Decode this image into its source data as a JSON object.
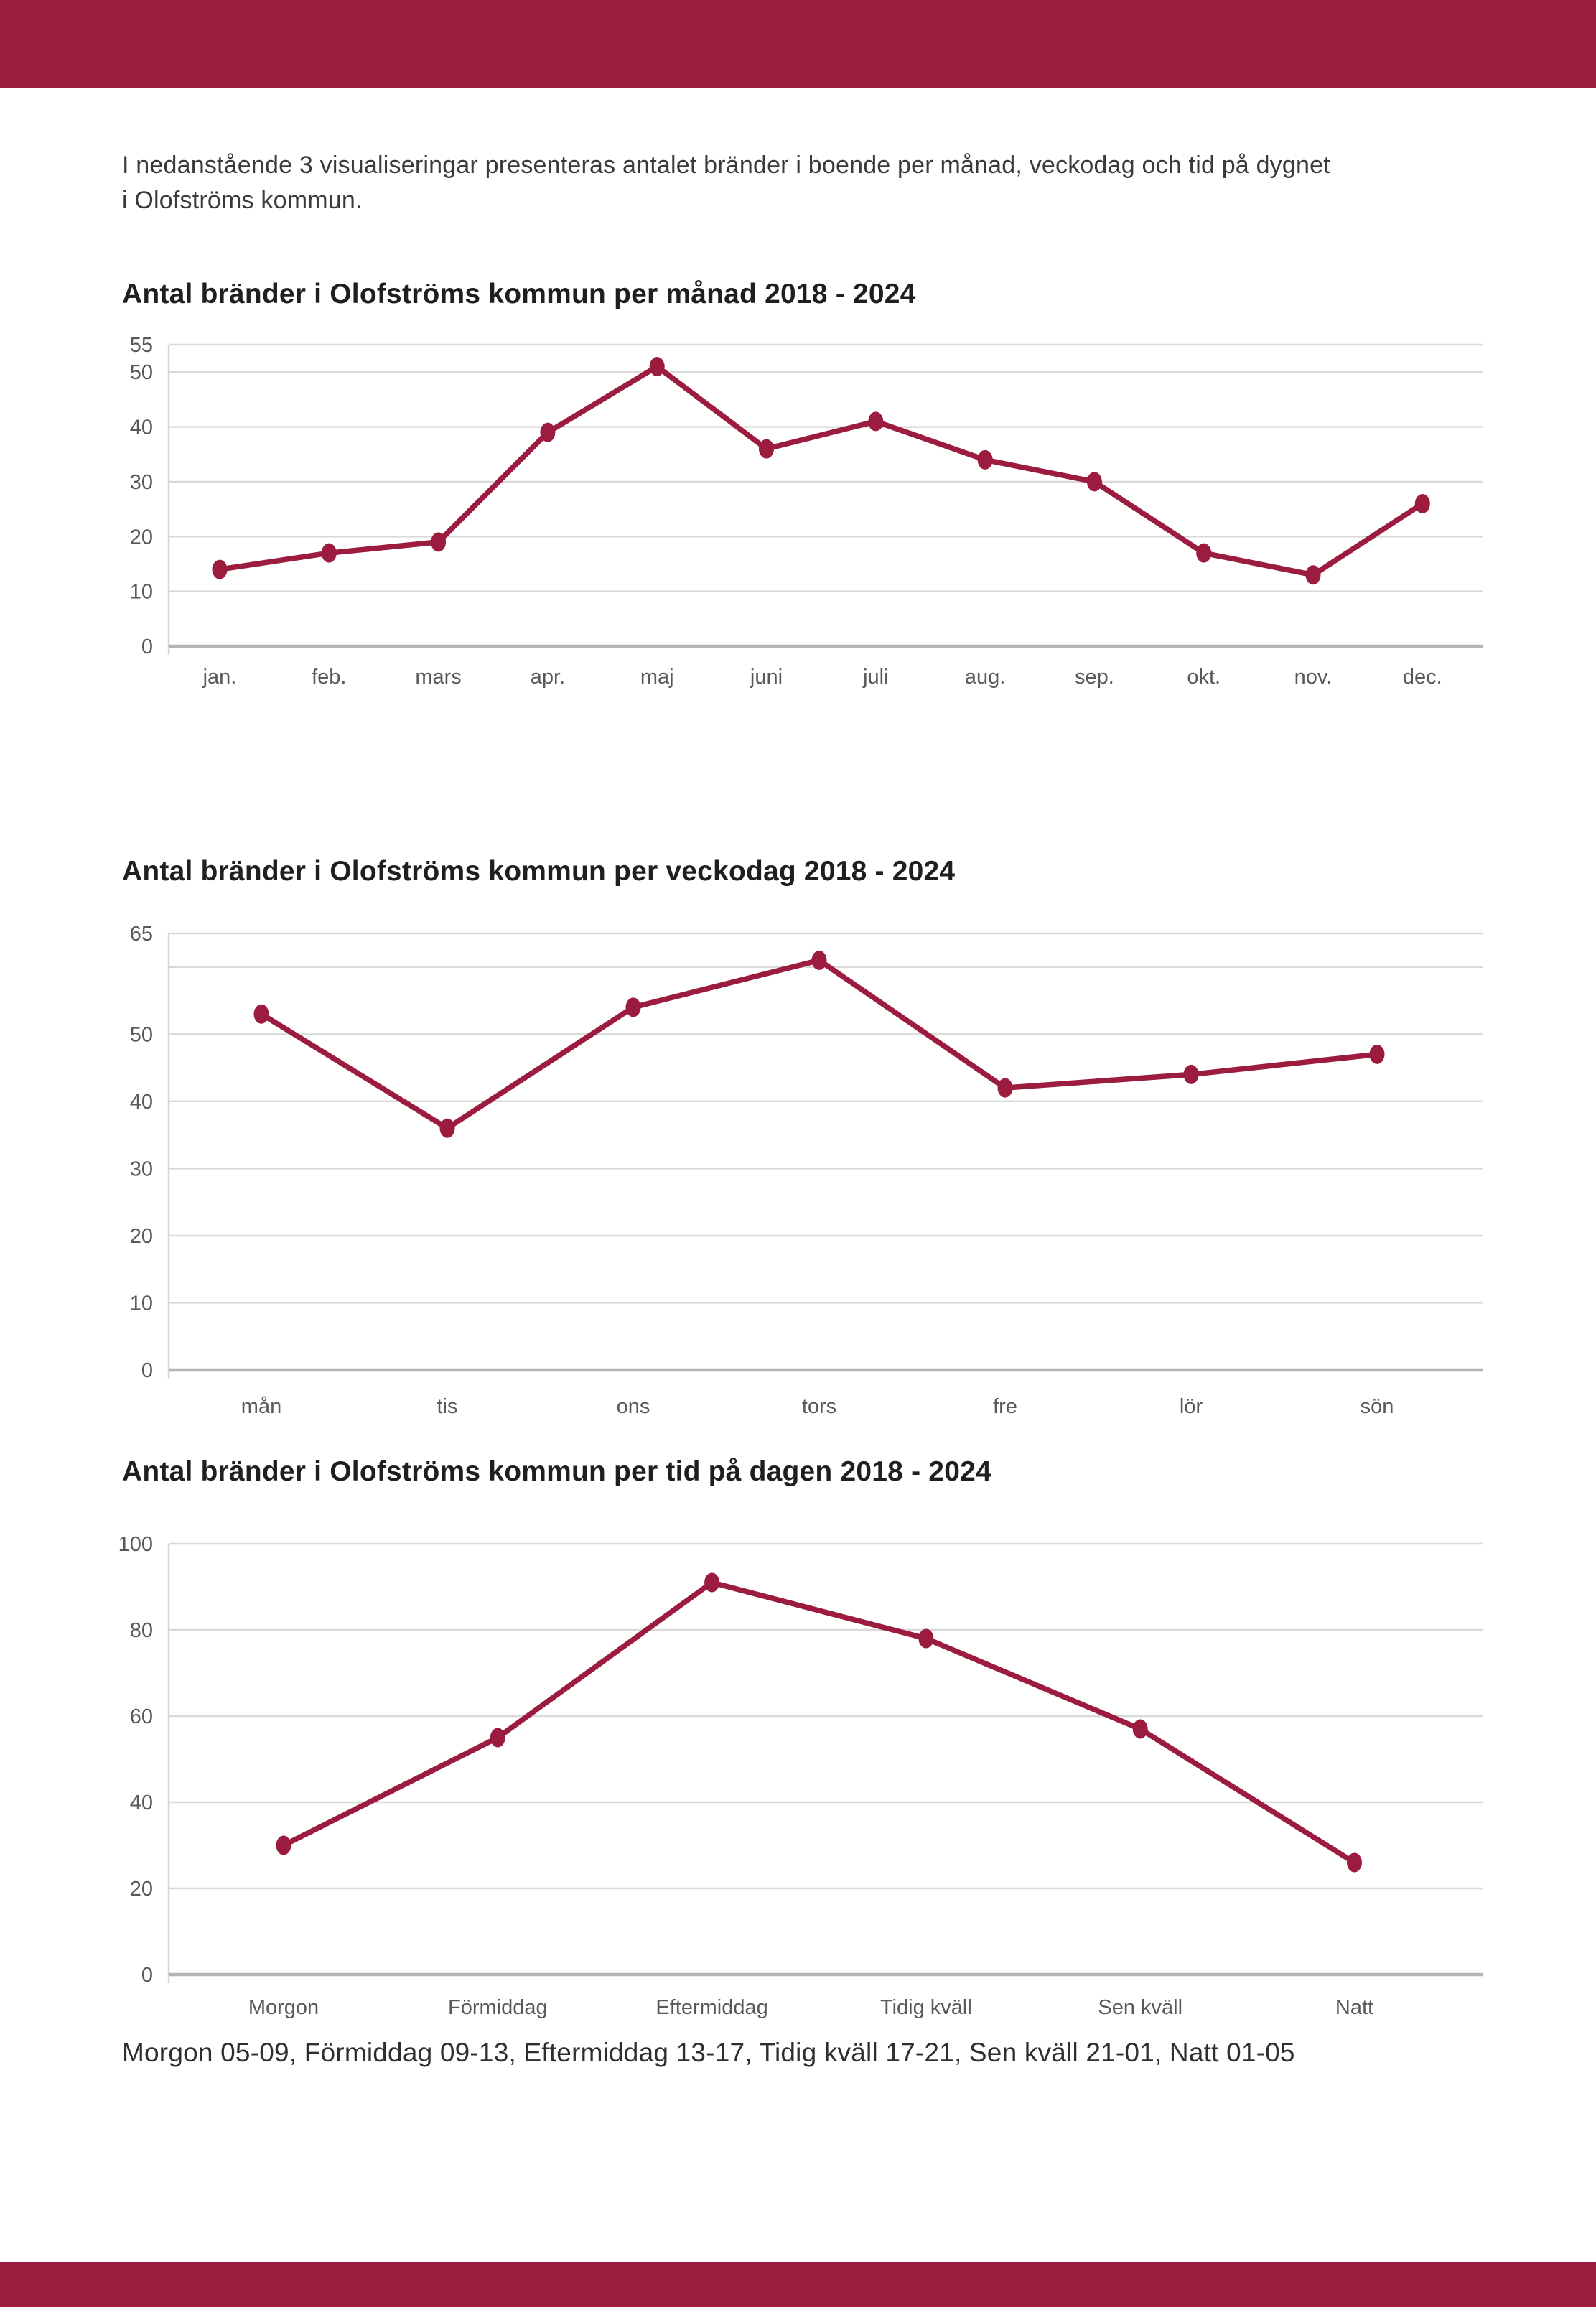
{
  "intro": {
    "line1": "I nedanstående 3 visualiseringar presenteras antalet bränder i boende per månad, veckodag och tid på dygnet",
    "line2": "i Olofströms kommun."
  },
  "caption": "Morgon 05-09, Förmiddag 09-13, Eftermiddag 13-17, Tidig kväll 17-21, Sen kväll 21-01, Natt 01-05",
  "colors": {
    "brand": "#9c1c40",
    "gridline": "#d9d9d9",
    "plot_border": "#d4d4d4",
    "axis": "#b3b3b3",
    "tick_label": "#595959"
  },
  "chart_data": [
    {
      "type": "line",
      "title": "Antal bränder i Olofströms kommun per månad 2018 - 2024",
      "categories": [
        "jan.",
        "feb.",
        "mars",
        "apr.",
        "maj",
        "juni",
        "juli",
        "aug.",
        "sep.",
        "okt.",
        "nov.",
        "dec."
      ],
      "values": [
        14,
        17,
        19,
        39,
        51,
        36,
        41,
        34,
        30,
        17,
        13,
        26
      ],
      "xlabel": "",
      "ylabel": "",
      "ylim": [
        0,
        55
      ],
      "gridlines": [
        10,
        20,
        30,
        40,
        50,
        55
      ],
      "ytick_labels": [
        0,
        10,
        20,
        30,
        40,
        50,
        55
      ],
      "grid": true,
      "legend": "none"
    },
    {
      "type": "line",
      "title": "Antal bränder i Olofströms kommun per veckodag 2018 - 2024",
      "categories": [
        "mån",
        "tis",
        "ons",
        "tors",
        "fre",
        "lör",
        "sön"
      ],
      "values": [
        53,
        36,
        54,
        61,
        42,
        44,
        47
      ],
      "xlabel": "",
      "ylabel": "",
      "ylim": [
        0,
        65
      ],
      "gridlines": [
        10,
        20,
        30,
        40,
        50,
        60,
        65
      ],
      "ytick_labels": [
        0,
        10,
        20,
        30,
        40,
        50,
        65
      ],
      "grid": true,
      "legend": "none"
    },
    {
      "type": "line",
      "title": "Antal bränder i Olofströms kommun per tid på dagen 2018 - 2024",
      "categories": [
        "Morgon",
        "Förmiddag",
        "Eftermiddag",
        "Tidig kväll",
        "Sen kväll",
        "Natt"
      ],
      "values": [
        30,
        55,
        91,
        78,
        57,
        26
      ],
      "xlabel": "",
      "ylabel": "",
      "ylim": [
        0,
        100
      ],
      "gridlines": [
        20,
        40,
        60,
        80,
        100
      ],
      "ytick_labels": [
        0,
        20,
        40,
        60,
        80,
        100
      ],
      "grid": true,
      "legend": "none"
    }
  ]
}
